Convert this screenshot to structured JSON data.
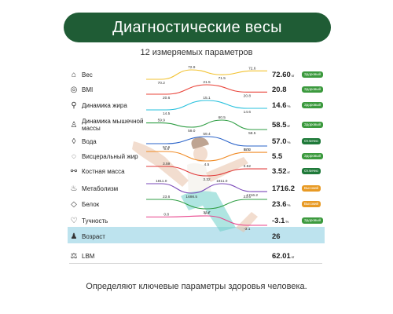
{
  "title": "Диагностические весы",
  "subtitle": "12 измеряемых параметров",
  "footer": "Определяют ключевые параметры здоровья человека.",
  "colors": {
    "banner": "#1f5c35",
    "badge_green": "#3c9a3e",
    "badge_darkgreen": "#1f7a3a",
    "badge_orange": "#e89a24"
  },
  "rows": [
    {
      "icon": "weight-scale-icon",
      "glyph": "⌂",
      "label": "Вес",
      "value": "72.60",
      "unit": "кг",
      "badge": "Здоровый",
      "badge_color": "#3c9a3e",
      "curve_color": "#f2c230",
      "points": [
        "70.2",
        "72.9",
        "71.5",
        "72.6"
      ]
    },
    {
      "icon": "bmi-icon",
      "glyph": "◎",
      "label": "BMI",
      "value": "20.8",
      "unit": "",
      "badge": "Здоровый",
      "badge_color": "#3c9a3e",
      "curve_color": "#e9443a",
      "points": [
        "20.6",
        "21.5",
        "20.8"
      ]
    },
    {
      "icon": "fat-icon",
      "glyph": "⚲",
      "label": "Динамика жира",
      "value": "14.6",
      "unit": "%",
      "badge": "Здоровый",
      "badge_color": "#3c9a3e",
      "curve_color": "#27c1dd",
      "points": [
        "14.5",
        "15.1",
        "14.6"
      ]
    },
    {
      "icon": "muscle-icon",
      "glyph": "♙",
      "label": "Динамика мышечной массы",
      "value": "58.5",
      "unit": "кг",
      "badge": "Здоровый",
      "badge_color": "#3c9a3e",
      "curve_color": "#2f9e44",
      "points": [
        "59.9",
        "59.0",
        "60.5",
        "58.5"
      ]
    },
    {
      "icon": "water-drop-icon",
      "glyph": "◊",
      "label": "Вода",
      "value": "57.0",
      "unit": "%",
      "badge": "Отлично",
      "badge_color": "#1f7a3a",
      "curve_color": "#2a63c9",
      "points": [
        "57.6",
        "59.4",
        "57.0"
      ]
    },
    {
      "icon": "visceral-fat-icon",
      "glyph": "◌",
      "label": "Висцеральный жир",
      "value": "5.5",
      "unit": "",
      "badge": "Здоровый",
      "badge_color": "#3c9a3e",
      "curve_color": "#f08a24",
      "points": [
        "5.6",
        "4.5",
        "5.5"
      ]
    },
    {
      "icon": "bone-icon",
      "glyph": "⚯",
      "label": "Костная масса",
      "value": "3.52",
      "unit": "кг",
      "badge": "Отлично",
      "badge_color": "#1f7a3a",
      "curve_color": "#e13b3b",
      "points": [
        "3.59",
        "3.32",
        "3.52"
      ]
    },
    {
      "icon": "metabolism-icon",
      "glyph": "♨",
      "label": "Метаболизм",
      "value": "1716.2",
      "unit": "",
      "badge": "Высокий",
      "badge_color": "#e89a24",
      "curve_color": "#7a48b8",
      "points": [
        "1811.0",
        "1698.5",
        "1811.0",
        "1716.2"
      ]
    },
    {
      "icon": "protein-icon",
      "glyph": "◇",
      "label": "Белок",
      "value": "23.6",
      "unit": "%",
      "badge": "Высокий",
      "badge_color": "#e89a24",
      "curve_color": "#2f9e44",
      "points": [
        "23.6",
        "21.7",
        "23.6"
      ]
    },
    {
      "icon": "fatness-icon",
      "glyph": "♡",
      "label": "Тучность",
      "value": "-3.1",
      "unit": "%",
      "badge": "Здоровый",
      "badge_color": "#3c9a3e",
      "curve_color": "#e8408a",
      "points": [
        "0.8",
        "1.3",
        "-3.1"
      ]
    },
    {
      "icon": "age-icon",
      "glyph": "♟",
      "label": "Возраст",
      "value": "26",
      "unit": "",
      "badge": "",
      "badge_color": "",
      "curve_color": "",
      "points": []
    },
    {
      "icon": "lbm-icon",
      "glyph": "⚖",
      "label": "LBM",
      "value": "62.01",
      "unit": "кг",
      "badge": "",
      "badge_color": "",
      "curve_color": "",
      "points": []
    }
  ]
}
